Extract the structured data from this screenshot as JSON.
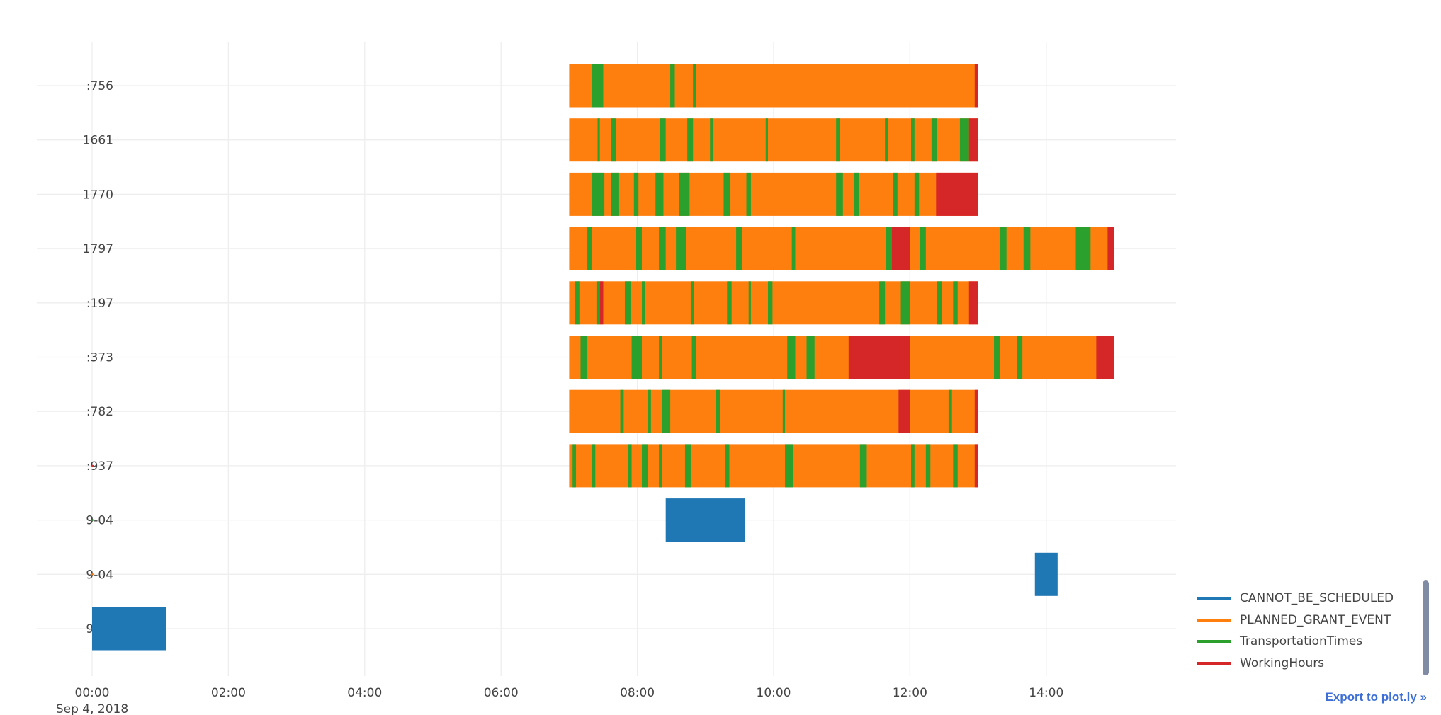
{
  "chart_data": {
    "type": "timeline",
    "title": "",
    "xlabel": "",
    "ylabel": "",
    "x_ticks": [
      "00:00",
      "02:00",
      "04:00",
      "06:00",
      "08:00",
      "10:00",
      "12:00",
      "14:00"
    ],
    "x_date_label": "Sep 4, 2018",
    "xlim": [
      "-00:50",
      "20:20"
    ],
    "grid": true,
    "colors": {
      "CANNOT_BE_SCHEDULED": "#1f77b4",
      "PLANNED_GRANT_EVENT": "#ff7f0e",
      "TransportationTimes": "#2ca02c",
      "WorkingHours": "#d62728"
    },
    "rows": [
      {
        "label": ":756",
        "base": [
          "07:00",
          "13:00"
        ],
        "segments": [
          [
            "07:20",
            "07:30",
            "TransportationTimes"
          ],
          [
            "08:29",
            "08:33",
            "TransportationTimes"
          ],
          [
            "08:49",
            "08:52",
            "TransportationTimes"
          ],
          [
            "12:57",
            "13:00",
            "WorkingHours"
          ]
        ]
      },
      {
        "label": "1661",
        "base": [
          "07:00",
          "13:00"
        ],
        "segments": [
          [
            "07:25",
            "07:27",
            "TransportationTimes"
          ],
          [
            "07:37",
            "07:41",
            "TransportationTimes"
          ],
          [
            "08:20",
            "08:25",
            "TransportationTimes"
          ],
          [
            "08:44",
            "08:49",
            "TransportationTimes"
          ],
          [
            "09:04",
            "09:07",
            "TransportationTimes"
          ],
          [
            "09:53",
            "09:55",
            "TransportationTimes"
          ],
          [
            "10:55",
            "10:58",
            "TransportationTimes"
          ],
          [
            "11:38",
            "11:41",
            "TransportationTimes"
          ],
          [
            "12:01",
            "12:04",
            "TransportationTimes"
          ],
          [
            "12:19",
            "12:24",
            "TransportationTimes"
          ],
          [
            "12:44",
            "12:52",
            "TransportationTimes"
          ],
          [
            "12:52",
            "13:00",
            "WorkingHours"
          ]
        ]
      },
      {
        "label": "1770",
        "base": [
          "07:00",
          "13:00"
        ],
        "segments": [
          [
            "07:20",
            "07:31",
            "TransportationTimes"
          ],
          [
            "07:37",
            "07:44",
            "TransportationTimes"
          ],
          [
            "07:57",
            "08:01",
            "TransportationTimes"
          ],
          [
            "08:16",
            "08:23",
            "TransportationTimes"
          ],
          [
            "08:37",
            "08:46",
            "TransportationTimes"
          ],
          [
            "09:16",
            "09:22",
            "TransportationTimes"
          ],
          [
            "09:36",
            "09:40",
            "TransportationTimes"
          ],
          [
            "10:55",
            "11:01",
            "TransportationTimes"
          ],
          [
            "11:11",
            "11:15",
            "TransportationTimes"
          ],
          [
            "11:45",
            "11:49",
            "TransportationTimes"
          ],
          [
            "12:04",
            "12:08",
            "TransportationTimes"
          ],
          [
            "12:23",
            "13:00",
            "WorkingHours"
          ]
        ]
      },
      {
        "label": "1797",
        "base": [
          "07:00",
          "15:00"
        ],
        "segments": [
          [
            "07:16",
            "07:20",
            "TransportationTimes"
          ],
          [
            "07:59",
            "08:04",
            "TransportationTimes"
          ],
          [
            "08:19",
            "08:25",
            "TransportationTimes"
          ],
          [
            "08:34",
            "08:43",
            "TransportationTimes"
          ],
          [
            "09:27",
            "09:32",
            "TransportationTimes"
          ],
          [
            "10:16",
            "10:19",
            "TransportationTimes"
          ],
          [
            "11:39",
            "11:44",
            "TransportationTimes"
          ],
          [
            "11:44",
            "12:00",
            "WorkingHours"
          ],
          [
            "12:09",
            "12:14",
            "TransportationTimes"
          ],
          [
            "13:19",
            "13:25",
            "TransportationTimes"
          ],
          [
            "13:40",
            "13:46",
            "TransportationTimes"
          ],
          [
            "14:26",
            "14:39",
            "TransportationTimes"
          ],
          [
            "14:54",
            "15:00",
            "WorkingHours"
          ]
        ]
      },
      {
        "label": ":197",
        "base": [
          "07:00",
          "13:00"
        ],
        "segments": [
          [
            "07:05",
            "07:09",
            "TransportationTimes"
          ],
          [
            "07:24",
            "07:27",
            "TransportationTimes"
          ],
          [
            "07:27",
            "07:30",
            "WorkingHours"
          ],
          [
            "07:49",
            "07:54",
            "TransportationTimes"
          ],
          [
            "08:04",
            "08:07",
            "TransportationTimes"
          ],
          [
            "08:47",
            "08:50",
            "TransportationTimes"
          ],
          [
            "09:19",
            "09:23",
            "TransportationTimes"
          ],
          [
            "09:38",
            "09:40",
            "TransportationTimes"
          ],
          [
            "09:55",
            "09:59",
            "TransportationTimes"
          ],
          [
            "11:33",
            "11:38",
            "TransportationTimes"
          ],
          [
            "11:52",
            "12:00",
            "TransportationTimes"
          ],
          [
            "12:24",
            "12:28",
            "TransportationTimes"
          ],
          [
            "12:38",
            "12:42",
            "TransportationTimes"
          ],
          [
            "12:52",
            "13:00",
            "WorkingHours"
          ]
        ]
      },
      {
        "label": ":373",
        "base": [
          "07:00",
          "15:00"
        ],
        "segments": [
          [
            "07:10",
            "07:16",
            "TransportationTimes"
          ],
          [
            "07:55",
            "08:04",
            "TransportationTimes"
          ],
          [
            "08:19",
            "08:22",
            "TransportationTimes"
          ],
          [
            "08:48",
            "08:52",
            "TransportationTimes"
          ],
          [
            "10:12",
            "10:19",
            "TransportationTimes"
          ],
          [
            "10:29",
            "10:36",
            "TransportationTimes"
          ],
          [
            "11:06",
            "12:00",
            "WorkingHours"
          ],
          [
            "13:14",
            "13:19",
            "TransportationTimes"
          ],
          [
            "13:34",
            "13:39",
            "TransportationTimes"
          ],
          [
            "14:44",
            "15:00",
            "WorkingHours"
          ]
        ]
      },
      {
        "label": ":782",
        "base": [
          "07:00",
          "13:00"
        ],
        "segments": [
          [
            "07:45",
            "07:48",
            "TransportationTimes"
          ],
          [
            "08:09",
            "08:12",
            "TransportationTimes"
          ],
          [
            "08:22",
            "08:29",
            "TransportationTimes"
          ],
          [
            "09:09",
            "09:13",
            "TransportationTimes"
          ],
          [
            "10:08",
            "10:10",
            "TransportationTimes"
          ],
          [
            "11:50",
            "12:00",
            "WorkingHours"
          ],
          [
            "12:34",
            "12:37",
            "TransportationTimes"
          ],
          [
            "12:57",
            "13:00",
            "WorkingHours"
          ]
        ]
      },
      {
        "label": ":937",
        "base": [
          "07:00",
          "13:00"
        ],
        "marker": "WorkingHours",
        "segments": [
          [
            "07:03",
            "07:06",
            "TransportationTimes"
          ],
          [
            "07:20",
            "07:23",
            "TransportationTimes"
          ],
          [
            "07:52",
            "07:55",
            "TransportationTimes"
          ],
          [
            "08:04",
            "08:09",
            "TransportationTimes"
          ],
          [
            "08:19",
            "08:22",
            "TransportationTimes"
          ],
          [
            "08:42",
            "08:47",
            "TransportationTimes"
          ],
          [
            "09:17",
            "09:21",
            "TransportationTimes"
          ],
          [
            "10:10",
            "10:17",
            "TransportationTimes"
          ],
          [
            "11:16",
            "11:22",
            "TransportationTimes"
          ],
          [
            "12:01",
            "12:04",
            "TransportationTimes"
          ],
          [
            "12:14",
            "12:18",
            "TransportationTimes"
          ],
          [
            "12:38",
            "12:42",
            "TransportationTimes"
          ],
          [
            "12:57",
            "13:00",
            "WorkingHours"
          ]
        ]
      },
      {
        "label": "9-04",
        "marker": "TransportationTimes",
        "segments": [
          [
            "08:25",
            "09:35",
            "CANNOT_BE_SCHEDULED"
          ]
        ]
      },
      {
        "label": "9-04",
        "marker": "PLANNED_GRANT_EVENT",
        "segments": [
          [
            "13:50",
            "14:10",
            "CANNOT_BE_SCHEDULED"
          ]
        ]
      },
      {
        "label": "9-04",
        "marker": "CANNOT_BE_SCHEDULED",
        "segments": [
          [
            "00:00",
            "01:05",
            "CANNOT_BE_SCHEDULED"
          ]
        ]
      }
    ],
    "legend": [
      "CANNOT_BE_SCHEDULED",
      "PLANNED_GRANT_EVENT",
      "TransportationTimes",
      "WorkingHours"
    ],
    "legend_position": "bottom-right"
  },
  "export_link": "Export to plot.ly »"
}
